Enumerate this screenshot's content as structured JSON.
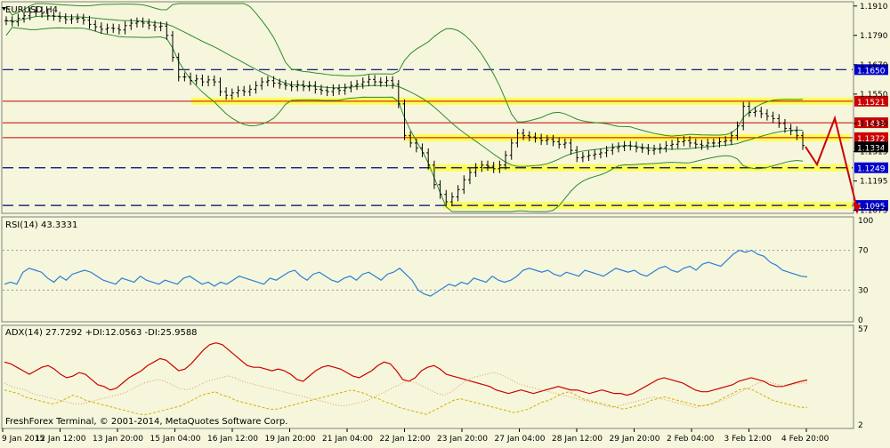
{
  "colors": {
    "background": "#f6f6dc",
    "panel_border": "#808080",
    "grid": "#c8c8b4",
    "candles": "#000000",
    "bollinger": "#2e8b2e",
    "support_resistance_dashed": "#000080",
    "resistance_line": "#cc0000",
    "highlight_band": "#ffff40",
    "price_label": "#cc0000",
    "level_label": "#0000cc",
    "rsi_line": "#2a7fd4",
    "adx_line": "#cc0000",
    "di_plus": "#d4b000",
    "di_minus": "#d4a060",
    "arrow": "#cc0000"
  },
  "main": {
    "symbol_label": "EURUSD,H4",
    "copyright": "FreshForex Terminal, © 2001-2014, MetaQuotes Software Corp."
  },
  "chart_data": [
    {
      "type": "candlestick",
      "title": "EURUSD,H4",
      "ylim": [
        1.107,
        1.192
      ],
      "y_ticks": [
        "1.1910",
        "1.1790",
        "1.1670",
        "1.1550",
        "1.1430",
        "1.1315",
        "1.1195",
        "1.1075"
      ],
      "x_ticks": [
        "9 Jan 2015",
        "12 Jan 12:00",
        "13 Jan 20:00",
        "15 Jan 04:00",
        "16 Jan 12:00",
        "19 Jan 20:00",
        "21 Jan 04:00",
        "22 Jan 12:00",
        "23 Jan 20:00",
        "27 Jan 04:00",
        "28 Jan 12:00",
        "29 Jan 20:00",
        "2 Feb 04:00",
        "3 Feb 12:00",
        "4 Feb 20:00"
      ],
      "close": [
        1.185,
        1.1845,
        1.186,
        1.187,
        1.1885,
        1.189,
        1.188,
        1.187,
        1.1868,
        1.1862,
        1.1855,
        1.1858,
        1.186,
        1.1852,
        1.1835,
        1.1825,
        1.1815,
        1.182,
        1.1818,
        1.1812,
        1.183,
        1.184,
        1.1845,
        1.184,
        1.1832,
        1.1825,
        1.1828,
        1.179,
        1.17,
        1.162,
        1.162,
        1.1605,
        1.1612,
        1.16,
        1.1608,
        1.16,
        1.156,
        1.1545,
        1.1555,
        1.1565,
        1.156,
        1.157,
        1.1585,
        1.16,
        1.1605,
        1.1595,
        1.159,
        1.1585,
        1.158,
        1.1588,
        1.158,
        1.1585,
        1.157,
        1.1565,
        1.156,
        1.1572,
        1.1565,
        1.1575,
        1.1585,
        1.159,
        1.16,
        1.161,
        1.16,
        1.1598,
        1.1605,
        1.159,
        1.151,
        1.138,
        1.135,
        1.133,
        1.131,
        1.126,
        1.118,
        1.114,
        1.111,
        1.113,
        1.116,
        1.12,
        1.123,
        1.125,
        1.126,
        1.1255,
        1.1245,
        1.126,
        1.13,
        1.135,
        1.139,
        1.138,
        1.1375,
        1.137,
        1.136,
        1.1365,
        1.1355,
        1.1345,
        1.135,
        1.132,
        1.129,
        1.1295,
        1.13,
        1.1305,
        1.131,
        1.132,
        1.133,
        1.1335,
        1.134,
        1.1338,
        1.133,
        1.1328,
        1.132,
        1.1325,
        1.133,
        1.134,
        1.1345,
        1.1355,
        1.136,
        1.135,
        1.1345,
        1.134,
        1.135,
        1.135,
        1.1355,
        1.136,
        1.138,
        1.142,
        1.15,
        1.1475,
        1.148,
        1.147,
        1.146,
        1.145,
        1.143,
        1.141,
        1.14,
        1.138,
        1.134
      ],
      "price_labels": [
        {
          "value": 1.165,
          "text": "1.1650",
          "style": "dashed"
        },
        {
          "value": 1.1521,
          "text": "1.1521",
          "style": "solid"
        },
        {
          "value": 1.1433,
          "text": "1.1433",
          "style": "solid"
        },
        {
          "value": 1.1372,
          "text": "1.1372",
          "style": "solid"
        },
        {
          "value": 1.1334,
          "text": "1.1334",
          "style": "current"
        },
        {
          "value": 1.1249,
          "text": "1.1249",
          "style": "dashed"
        },
        {
          "value": 1.1095,
          "text": "1.1095",
          "style": "dashed"
        }
      ],
      "highlight_bands": [
        {
          "value": 1.1521,
          "from_x": "16 Jan 12:00",
          "to_x": "end"
        },
        {
          "value": 1.1372,
          "from_x": "22 Jan 12:00",
          "to_x": "4 Feb 20:00"
        },
        {
          "value": 1.1249,
          "from_x": "23 Jan 20:00",
          "to_x": "4 Feb 20:00"
        },
        {
          "value": 1.1095,
          "from_x": "23 Jan 20:00",
          "to_x": "end"
        }
      ]
    },
    {
      "type": "line",
      "title": "RSI(14) 43.3331",
      "ylim": [
        0,
        100
      ],
      "y_ticks": [
        "100",
        "70",
        "30",
        "0"
      ],
      "levels": [
        70,
        30
      ],
      "series": [
        {
          "name": "RSI(14)",
          "values": [
            36,
            38,
            36,
            48,
            52,
            50,
            48,
            42,
            38,
            44,
            40,
            46,
            48,
            50,
            48,
            44,
            40,
            38,
            36,
            42,
            40,
            38,
            44,
            40,
            38,
            36,
            40,
            38,
            36,
            42,
            44,
            40,
            36,
            38,
            34,
            38,
            36,
            40,
            44,
            42,
            40,
            38,
            36,
            42,
            40,
            44,
            48,
            50,
            44,
            40,
            46,
            48,
            44,
            40,
            38,
            42,
            44,
            40,
            46,
            48,
            44,
            40,
            46,
            48,
            52,
            46,
            40,
            30,
            26,
            24,
            28,
            32,
            36,
            34,
            38,
            36,
            42,
            40,
            38,
            44,
            40,
            38,
            40,
            44,
            50,
            52,
            50,
            48,
            50,
            46,
            44,
            48,
            46,
            44,
            50,
            48,
            46,
            44,
            48,
            52,
            50,
            48,
            50,
            46,
            44,
            48,
            52,
            54,
            50,
            48,
            52,
            54,
            50,
            56,
            58,
            56,
            54,
            60,
            66,
            70,
            68,
            70,
            66,
            64,
            58,
            55,
            50,
            48,
            46,
            44,
            43.33
          ]
        }
      ]
    },
    {
      "type": "line",
      "title": "ADX(14) 27.7292 +DI:12.0563 -DI:25.9588",
      "ylim": [
        2,
        57
      ],
      "y_ticks": [
        "57",
        "2"
      ],
      "series": [
        {
          "name": "ADX(14)",
          "values": [
            38,
            37,
            35,
            33,
            31,
            33,
            35,
            36,
            34,
            31,
            29,
            30,
            32,
            31,
            28,
            25,
            24,
            22,
            23,
            26,
            29,
            31,
            33,
            36,
            38,
            40,
            39,
            36,
            33,
            34,
            37,
            41,
            45,
            48,
            49,
            48,
            45,
            42,
            39,
            36,
            35,
            35,
            34,
            33,
            34,
            33,
            31,
            28,
            27,
            30,
            33,
            35,
            36,
            35,
            34,
            32,
            30,
            29,
            31,
            33,
            36,
            38,
            37,
            33,
            28,
            27,
            29,
            33,
            35,
            36,
            34,
            31,
            30,
            29,
            28,
            27,
            26,
            25,
            24,
            22,
            21,
            20,
            21,
            22,
            21,
            20,
            21,
            22,
            23,
            24,
            23,
            22,
            22,
            21,
            20,
            21,
            22,
            21,
            20,
            20,
            19,
            20,
            22,
            24,
            26,
            28,
            29,
            28,
            27,
            26,
            24,
            22,
            21,
            21,
            22,
            23,
            24,
            25,
            27,
            28,
            29,
            28,
            27,
            25,
            24,
            24,
            25,
            26,
            27,
            27.73
          ]
        },
        {
          "name": "+DI",
          "values": [
            22,
            21,
            20,
            18,
            17,
            16,
            15,
            14,
            15,
            17,
            19,
            18,
            16,
            15,
            14,
            13,
            12,
            11,
            10,
            9,
            8,
            8,
            9,
            10,
            11,
            12,
            13,
            15,
            17,
            19,
            20,
            21,
            19,
            18,
            16,
            15,
            14,
            13,
            12,
            11,
            11,
            12,
            13,
            14,
            15,
            16,
            17,
            18,
            19,
            20,
            21,
            22,
            21,
            20,
            18,
            17,
            15,
            14,
            12,
            11,
            10,
            9,
            8,
            10,
            12,
            14,
            16,
            17,
            16,
            15,
            14,
            13,
            12,
            11,
            10,
            9,
            10,
            11,
            13,
            15,
            16,
            18,
            20,
            21,
            19,
            17,
            16,
            15,
            14,
            13,
            12,
            11,
            12,
            13,
            14,
            16,
            17,
            18,
            17,
            16,
            15,
            14,
            13,
            13,
            14,
            16,
            18,
            20,
            22,
            23,
            22,
            20,
            18,
            16,
            15,
            14,
            13,
            12,
            12.06
          ]
        },
        {
          "name": "-DI",
          "values": [
            26,
            24,
            23,
            22,
            20,
            19,
            18,
            17,
            16,
            15,
            14,
            14,
            15,
            16,
            17,
            18,
            19,
            20,
            22,
            24,
            26,
            27,
            28,
            27,
            25,
            23,
            22,
            23,
            25,
            27,
            28,
            29,
            30,
            29,
            27,
            26,
            25,
            24,
            23,
            22,
            21,
            20,
            19,
            18,
            17,
            16,
            15,
            14,
            13,
            13,
            14,
            15,
            16,
            18,
            20,
            22,
            24,
            26,
            27,
            26,
            24,
            22,
            20,
            19,
            21,
            24,
            27,
            29,
            30,
            31,
            32,
            31,
            29,
            27,
            25,
            24,
            23,
            22,
            21,
            20,
            19,
            18,
            17,
            16,
            15,
            14,
            13,
            12,
            13,
            14,
            15,
            16,
            17,
            18,
            17,
            16,
            15,
            14,
            13,
            12,
            13,
            14,
            15,
            16,
            18,
            20,
            22,
            24,
            26,
            27,
            26,
            25,
            24,
            25,
            26,
            25.96
          ]
        }
      ]
    }
  ]
}
